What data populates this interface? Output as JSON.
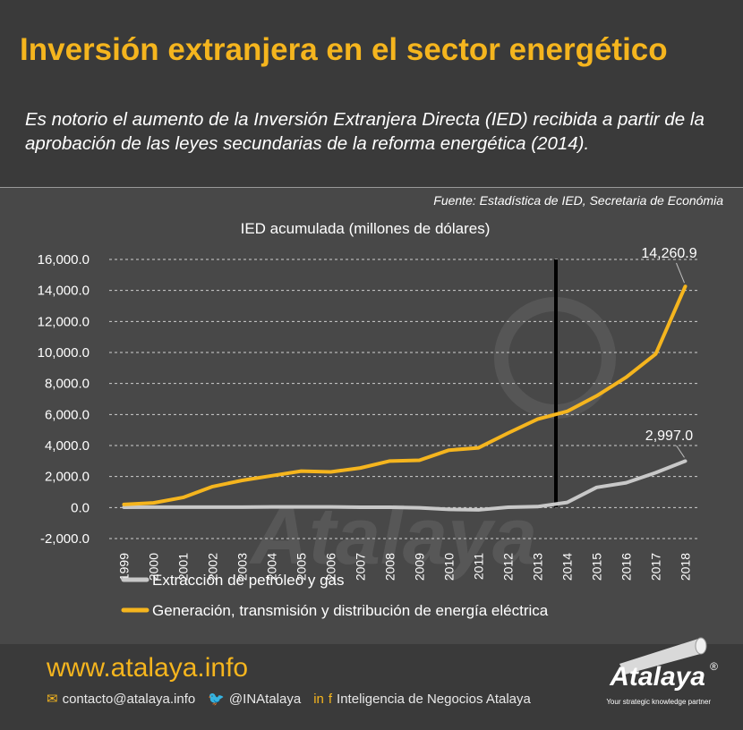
{
  "title": "Inversión extranjera en el sector energético",
  "subtitle": "Es notorio el aumento de la Inversión Extranjera Directa (IED) recibida a partir de la aprobación de las leyes secundarias de la reforma energética (2014).",
  "source": "Fuente: Estadística de IED, Secretaria de Económia",
  "chart_data": {
    "type": "line",
    "title": "IED acumulada (millones de dólares)",
    "xlabel": "",
    "ylabel": "",
    "x": [
      "1999",
      "2000",
      "2001",
      "2002",
      "2003",
      "2004",
      "2005",
      "2006",
      "2007",
      "2008",
      "2009",
      "2010",
      "2011",
      "2012",
      "2013",
      "2014",
      "2015",
      "2016",
      "2017",
      "2018"
    ],
    "ylim": [
      -2000,
      16000
    ],
    "yticks": [
      -2000,
      0,
      2000,
      4000,
      6000,
      8000,
      10000,
      12000,
      14000,
      16000
    ],
    "ytick_labels": [
      "-2,000.0",
      "0.0",
      "2,000.0",
      "4,000.0",
      "6,000.0",
      "8,000.0",
      "10,000.0",
      "12,000.0",
      "14,000.0",
      "16,000.0"
    ],
    "grid": true,
    "legend_position": "bottom",
    "marker_year": "2014",
    "series": [
      {
        "name": "Extracción de petróleo y gas",
        "color": "#c8c8c8",
        "values": [
          20,
          30,
          30,
          30,
          30,
          40,
          40,
          40,
          20,
          20,
          -20,
          -120,
          -150,
          20,
          60,
          330,
          1300,
          1600,
          2250,
          2997.0
        ],
        "end_label": "2,997.0"
      },
      {
        "name": "Generación, transmisión y distribución de energía eléctrica",
        "color": "#f5b51e",
        "values": [
          200,
          300,
          650,
          1350,
          1750,
          2050,
          2350,
          2300,
          2550,
          3000,
          3050,
          3700,
          3850,
          4800,
          5700,
          6200,
          7200,
          8400,
          9900,
          14260.9
        ],
        "end_label": "14,260.9"
      }
    ]
  },
  "footer": {
    "website": "www.atalaya.info",
    "email": "contacto@atalaya.info",
    "twitter": "@INAtalaya",
    "social_name": "Inteligencia de Negocios Atalaya",
    "email_icon": "envelope-icon",
    "twitter_icon": "twitter-icon",
    "linkedin_icon": "linkedin-icon",
    "facebook_icon": "facebook-icon"
  },
  "logo": {
    "name": "Atalaya",
    "tagline": "Your strategic knowledge partner"
  }
}
